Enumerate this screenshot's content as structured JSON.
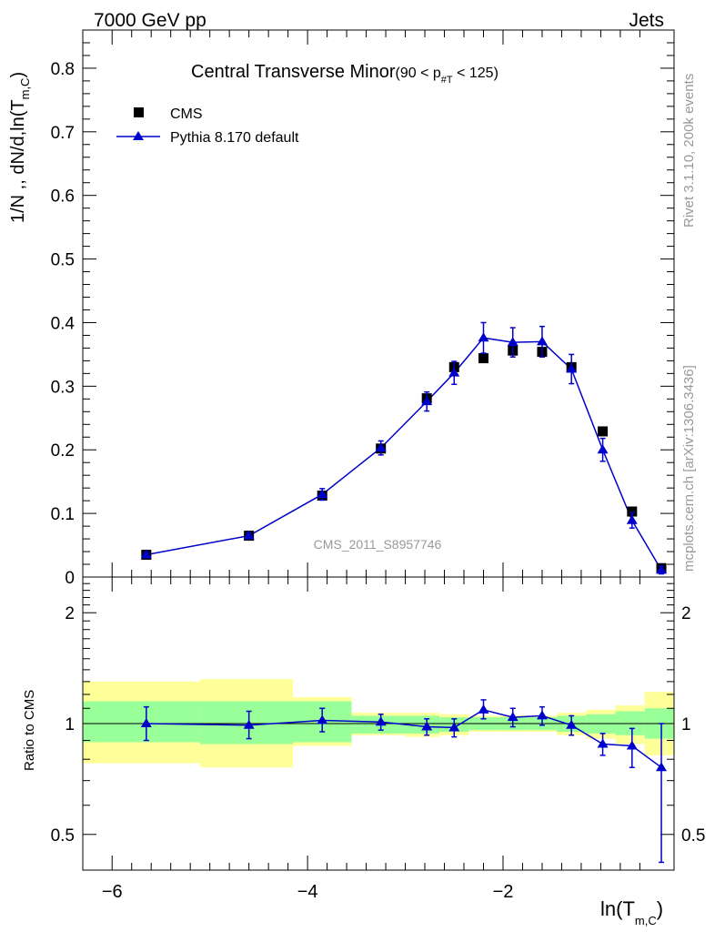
{
  "header": {
    "left": "7000 GeV pp",
    "right": "Jets"
  },
  "plot_title": {
    "main": "Central Transverse Minor",
    "range_open": "(90 < p",
    "range_sub": "#T",
    "range_close": " < 125)"
  },
  "side_labels": {
    "rivet": "Rivet 3.1.10,  200k events",
    "source": "mcplots.cern.ch [arXiv:1306.3436]"
  },
  "watermark": "CMS_2011_S8957746",
  "legend": {
    "data_label": "CMS",
    "mc_label": "Pythia 8.170 default"
  },
  "axis_labels": {
    "y_main_prefix": "1/N",
    "y_main_mid": " ,, dN/d,ln(T",
    "y_main_sub": "m,C",
    "y_main_suffix": ")",
    "y_ratio": "Ratio to CMS",
    "x_prefix": "ln(T",
    "x_sub": "m,C",
    "x_suffix": ")"
  },
  "colors": {
    "data": "#000000",
    "mc": "#0000cc",
    "band_inner": "#99ff99",
    "band_outer": "#ffff99"
  },
  "chart_data": [
    {
      "type": "scatter",
      "panel": "main",
      "xlim": [
        -6.3,
        -0.25
      ],
      "ylim": [
        0,
        0.86
      ],
      "yticks": [
        0,
        0.1,
        0.2,
        0.3,
        0.4,
        0.5,
        0.6,
        0.7,
        0.8
      ],
      "ytick_labels": [
        "0",
        "0.1",
        "0.2",
        "0.3",
        "0.4",
        "0.5",
        "0.6",
        "0.7",
        "0.8"
      ],
      "series": [
        {
          "name": "CMS",
          "marker": "square",
          "x": [
            -5.65,
            -4.6,
            -3.85,
            -3.25,
            -2.78,
            -2.5,
            -2.2,
            -1.9,
            -1.6,
            -1.3,
            -0.98,
            -0.68,
            -0.38
          ],
          "y": [
            0.035,
            0.065,
            0.128,
            0.202,
            0.281,
            0.33,
            0.344,
            0.356,
            0.354,
            0.33,
            0.229,
            0.103,
            0.014
          ]
        },
        {
          "name": "Pythia 8.170 default",
          "marker": "triangle",
          "x": [
            -5.65,
            -4.6,
            -3.85,
            -3.25,
            -2.78,
            -2.5,
            -2.2,
            -1.9,
            -1.6,
            -1.3,
            -0.98,
            -0.68,
            -0.38
          ],
          "y": [
            0.035,
            0.065,
            0.13,
            0.203,
            0.276,
            0.321,
            0.376,
            0.369,
            0.37,
            0.327,
            0.2,
            0.089,
            0.011
          ],
          "yerr": [
            0.003,
            0.004,
            0.009,
            0.011,
            0.015,
            0.018,
            0.024,
            0.023,
            0.024,
            0.023,
            0.018,
            0.012,
            0.006
          ]
        }
      ]
    },
    {
      "type": "line",
      "panel": "ratio",
      "log_y": true,
      "xlim": [
        -6.3,
        -0.25
      ],
      "ylim": [
        0.4,
        2.5
      ],
      "yticks": [
        0.5,
        1,
        2
      ],
      "ytick_labels": [
        "0.5",
        "1",
        "2"
      ],
      "xticks": [
        -6,
        -4,
        -2
      ],
      "xtick_labels": [
        "−6",
        "−4",
        "−2"
      ],
      "bin_edges": [
        -6.3,
        -5.1,
        -4.15,
        -3.55,
        -3.0,
        -2.65,
        -2.35,
        -2.05,
        -1.75,
        -1.45,
        -1.15,
        -0.85,
        -0.55,
        -0.25
      ],
      "band_inner": [
        [
          0.89,
          1.15
        ],
        [
          0.88,
          1.15
        ],
        [
          0.89,
          1.15
        ],
        [
          0.94,
          1.05
        ],
        [
          0.94,
          1.05
        ],
        [
          0.95,
          1.04
        ],
        [
          0.96,
          1.04
        ],
        [
          0.96,
          1.04
        ],
        [
          0.96,
          1.04
        ],
        [
          0.95,
          1.05
        ],
        [
          0.94,
          1.06
        ],
        [
          0.93,
          1.08
        ],
        [
          0.91,
          1.1
        ]
      ],
      "band_outer": [
        [
          0.78,
          1.3
        ],
        [
          0.76,
          1.32
        ],
        [
          0.87,
          1.18
        ],
        [
          0.93,
          1.07
        ],
        [
          0.92,
          1.07
        ],
        [
          0.93,
          1.06
        ],
        [
          0.95,
          1.05
        ],
        [
          0.95,
          1.05
        ],
        [
          0.95,
          1.05
        ],
        [
          0.93,
          1.07
        ],
        [
          0.91,
          1.09
        ],
        [
          0.88,
          1.12
        ],
        [
          0.82,
          1.22
        ]
      ],
      "series": [
        {
          "name": "Pythia 8.170 default",
          "x": [
            -5.65,
            -4.6,
            -3.85,
            -3.25,
            -2.78,
            -2.5,
            -2.2,
            -1.9,
            -1.6,
            -1.3,
            -0.98,
            -0.68,
            -0.38
          ],
          "y": [
            1.0,
            0.99,
            1.02,
            1.01,
            0.98,
            0.975,
            1.09,
            1.04,
            1.05,
            0.99,
            0.88,
            0.87,
            0.76
          ],
          "ylow": [
            0.9,
            0.91,
            0.95,
            0.96,
            0.93,
            0.92,
            1.03,
            0.98,
            0.99,
            0.93,
            0.82,
            0.76,
            0.42
          ],
          "yhigh": [
            1.11,
            1.08,
            1.1,
            1.06,
            1.03,
            1.03,
            1.16,
            1.1,
            1.11,
            1.05,
            0.94,
            0.97,
            1.0
          ]
        }
      ]
    }
  ]
}
